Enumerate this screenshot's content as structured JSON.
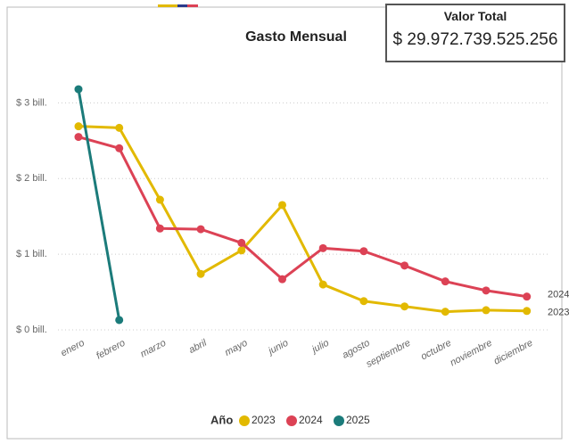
{
  "chart_data": {
    "type": "line",
    "title": "Gasto Mensual",
    "categories": [
      "enero",
      "febrero",
      "marzo",
      "abril",
      "mayo",
      "junio",
      "julio",
      "agosto",
      "septiembre",
      "octubre",
      "noviembre",
      "diciembre"
    ],
    "series": [
      {
        "name": "2023",
        "color": "#e2b900",
        "values": [
          2.69,
          2.67,
          1.72,
          0.74,
          1.05,
          1.65,
          0.6,
          0.38,
          0.31,
          0.24,
          0.26,
          0.25
        ]
      },
      {
        "name": "2024",
        "color": "#dc4255",
        "values": [
          2.55,
          2.4,
          1.34,
          1.33,
          1.15,
          0.67,
          1.08,
          1.04,
          0.85,
          0.64,
          0.52,
          0.44
        ]
      },
      {
        "name": "2025",
        "color": "#1b7b7a",
        "values": [
          3.18,
          0.13,
          null,
          null,
          null,
          null,
          null,
          null,
          null,
          null,
          null,
          null
        ]
      }
    ],
    "ylim": [
      0,
      3.24
    ],
    "yticks": [
      {
        "value": 0,
        "label": "$ 0 bill."
      },
      {
        "value": 1,
        "label": "$ 1 bill."
      },
      {
        "value": 2,
        "label": "$ 2 bill."
      },
      {
        "value": 3,
        "label": "$ 3 bill."
      }
    ],
    "grid": true,
    "legend_title": "Año",
    "legend": "bottom"
  },
  "card": {
    "title": "Valor Total",
    "value": "$ 29.972.739.525.256"
  }
}
